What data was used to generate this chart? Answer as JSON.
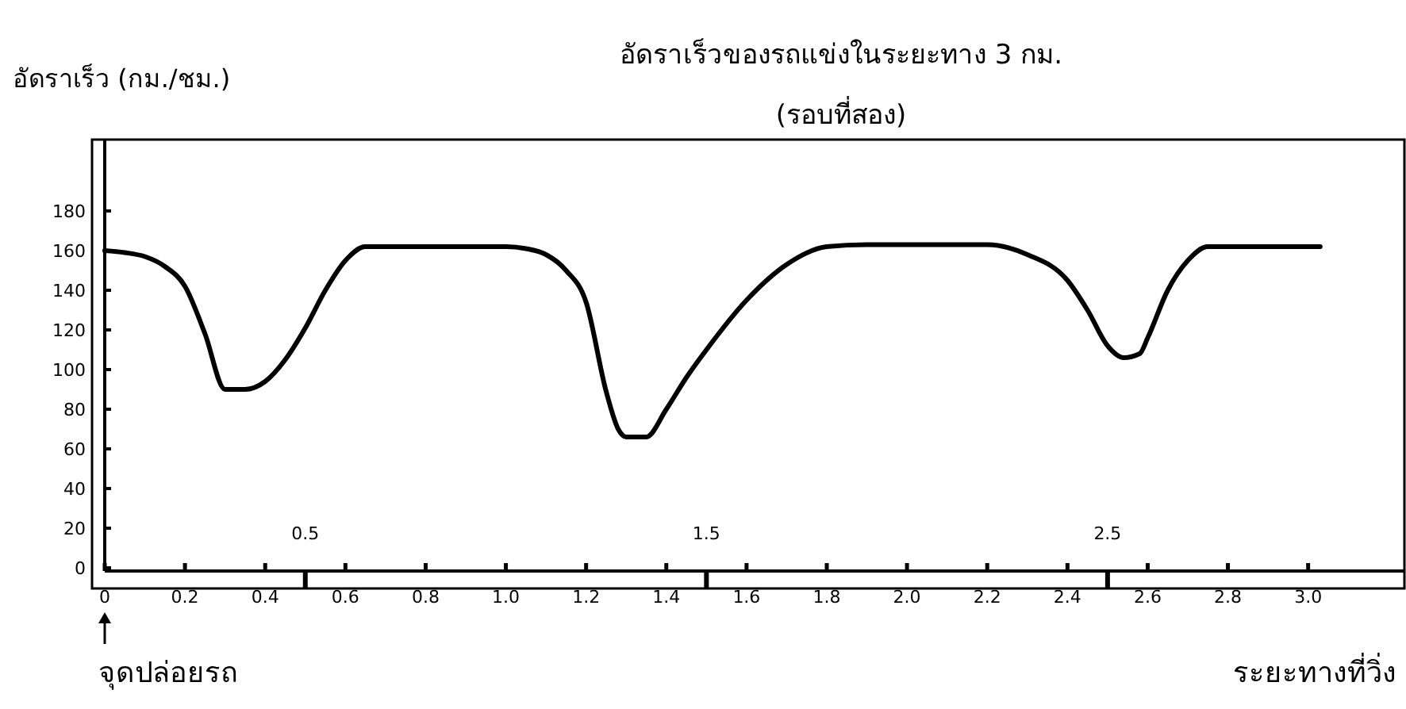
{
  "chart_data": {
    "type": "line",
    "title": "อัดราเร็วของรถแข่งในระยะทาง 3 กม.",
    "subtitle": "(รอบที่สอง)",
    "xlabel": "ระยะทางที่วิ่ง",
    "ylabel": "อัดราเร็ว (กม./ชม.)",
    "x": [
      0,
      0.05,
      0.1,
      0.15,
      0.2,
      0.25,
      0.3,
      0.35,
      0.4,
      0.45,
      0.5,
      0.55,
      0.6,
      0.65,
      0.7,
      0.8,
      0.9,
      1.0,
      1.05,
      1.1,
      1.15,
      1.2,
      1.25,
      1.28,
      1.3,
      1.35,
      1.4,
      1.45,
      1.5,
      1.6,
      1.7,
      1.8,
      1.9,
      2.0,
      2.1,
      2.2,
      2.3,
      2.4,
      2.45,
      2.5,
      2.54,
      2.58,
      2.6,
      2.65,
      2.7,
      2.75,
      2.8,
      2.9,
      3.0,
      3.03
    ],
    "series": [
      {
        "color": "#000000",
        "values": [
          160,
          159,
          157,
          152,
          142,
          118,
          90,
          90,
          94,
          105,
          121,
          140,
          155,
          162,
          162,
          162,
          162,
          162,
          161,
          158,
          150,
          134,
          89,
          70,
          66,
          66,
          80,
          96,
          110,
          135,
          153,
          162,
          163,
          163,
          163,
          163,
          158,
          145,
          130,
          112,
          106,
          108,
          116,
          140,
          155,
          162,
          162,
          162,
          162,
          162
        ]
      }
    ],
    "xlim": [
      0,
      3.24
    ],
    "ylim": [
      0,
      216
    ],
    "x2lim": [
      0,
      3.24
    ],
    "x2ticks": [
      0.5,
      1.5,
      2.5
    ],
    "xticks": [
      0,
      0.2,
      0.4,
      0.6,
      0.8,
      {
        "value": 1,
        "label": "1.0"
      },
      1.2,
      1.4,
      1.6,
      1.8,
      {
        "value": 2,
        "label": "2.0"
      },
      2.2,
      2.4,
      2.6,
      2.8,
      {
        "value": 3,
        "label": "3.0"
      }
    ],
    "yticks": [
      0,
      20,
      40,
      60,
      80,
      100,
      120,
      140,
      160,
      180
    ],
    "annotations": [
      "จุดปล่อยรถ"
    ],
    "marker": "none",
    "line_style": "solid",
    "grid": false
  }
}
